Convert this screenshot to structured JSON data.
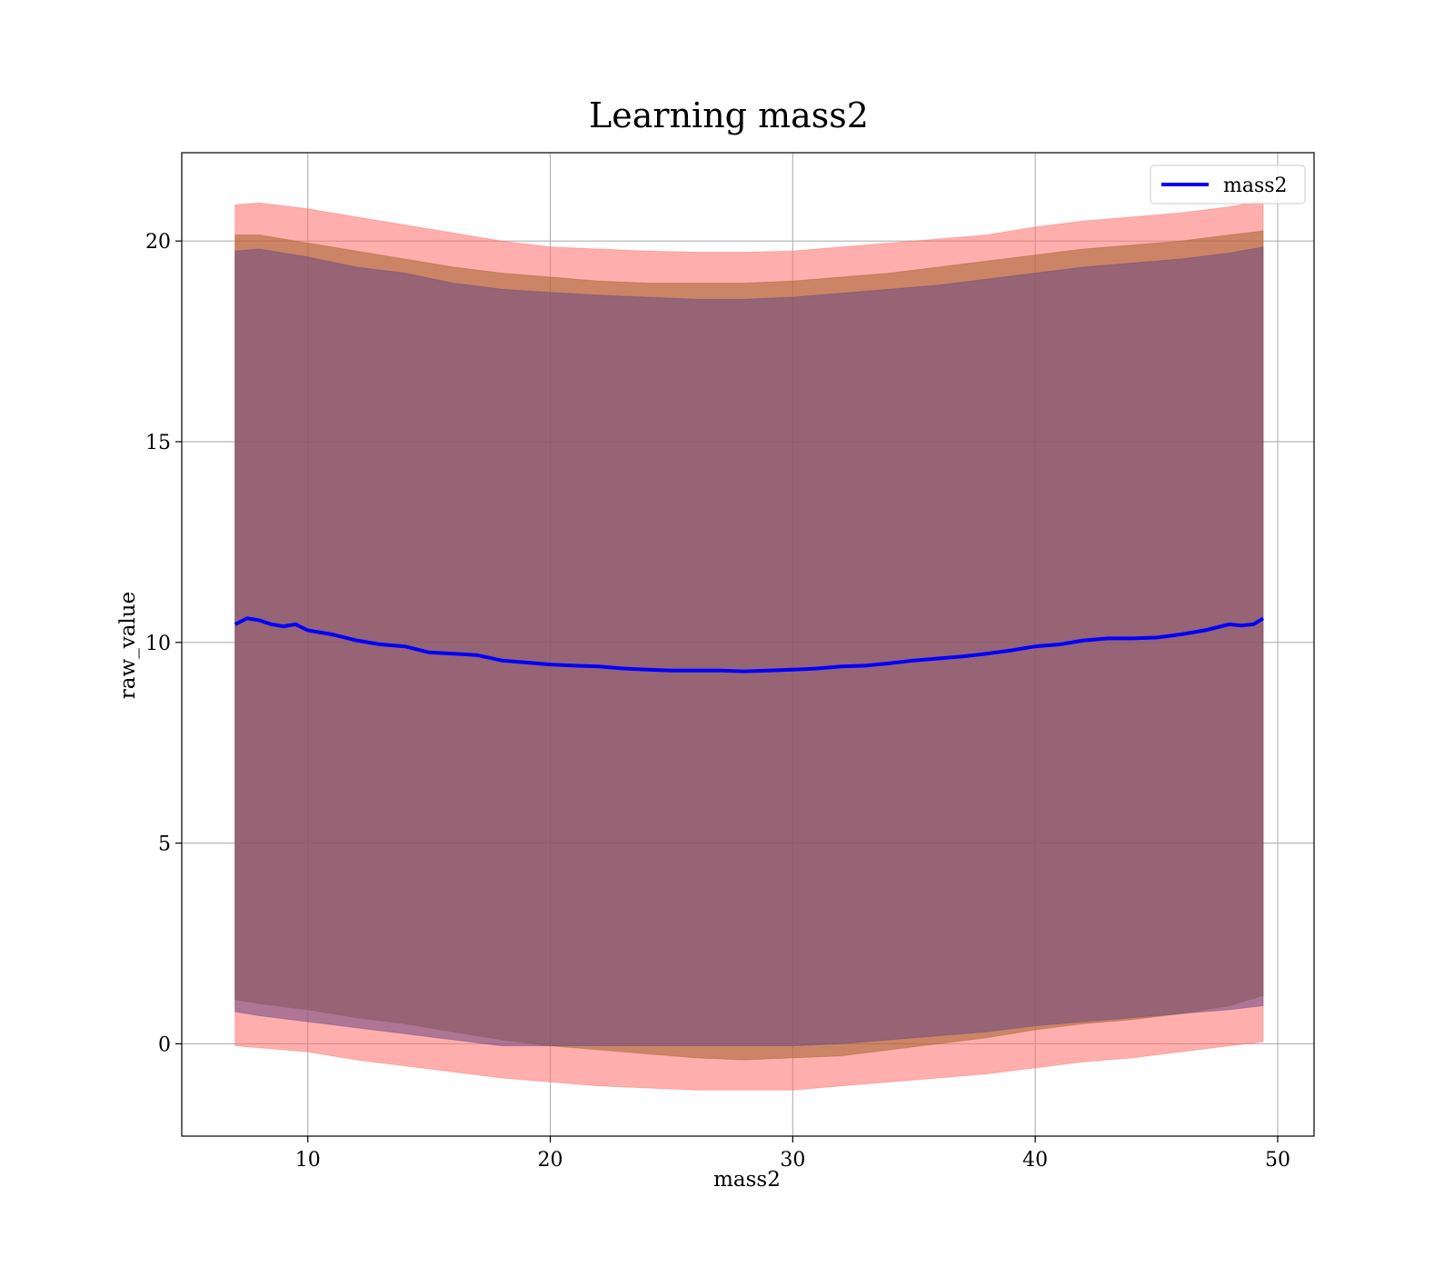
{
  "chart_data": {
    "type": "line",
    "title": "Learning mass2",
    "xlabel": "mass2",
    "ylabel": "raw_value",
    "xlim": [
      4.8,
      51.5
    ],
    "ylim": [
      -2.3,
      22.2
    ],
    "grid": true,
    "legend_placement": "top-right",
    "xticks": [
      10,
      20,
      30,
      40,
      50
    ],
    "yticks": [
      0,
      5,
      10,
      15,
      20
    ],
    "series": [
      {
        "name": "mass2",
        "color": "#0000ff",
        "x": [
          7.0,
          7.5,
          8.0,
          8.5,
          9.0,
          9.5,
          10.0,
          11.0,
          12.0,
          13.0,
          14.0,
          15.0,
          16.0,
          17.0,
          18.0,
          19.0,
          20.0,
          21.0,
          22.0,
          23.0,
          24.0,
          25.0,
          26.0,
          27.0,
          28.0,
          29.0,
          30.0,
          31.0,
          32.0,
          33.0,
          34.0,
          35.0,
          36.0,
          37.0,
          38.0,
          39.0,
          40.0,
          41.0,
          42.0,
          43.0,
          44.0,
          45.0,
          46.0,
          47.0,
          48.0,
          48.5,
          49.0,
          49.4
        ],
        "y": [
          10.45,
          10.6,
          10.55,
          10.45,
          10.4,
          10.45,
          10.3,
          10.2,
          10.05,
          9.95,
          9.9,
          9.75,
          9.72,
          9.68,
          9.55,
          9.5,
          9.45,
          9.42,
          9.4,
          9.35,
          9.32,
          9.3,
          9.3,
          9.3,
          9.28,
          9.3,
          9.32,
          9.35,
          9.4,
          9.42,
          9.48,
          9.55,
          9.6,
          9.65,
          9.72,
          9.8,
          9.9,
          9.95,
          10.05,
          10.1,
          10.1,
          10.12,
          10.2,
          10.3,
          10.45,
          10.42,
          10.45,
          10.6
        ]
      }
    ],
    "bands": [
      {
        "color": "#ff6b6b",
        "opacity": 0.55,
        "x": [
          7.0,
          8.0,
          10.0,
          12.0,
          14.0,
          16.0,
          18.0,
          20.0,
          22.0,
          24.0,
          26.0,
          28.0,
          30.0,
          32.0,
          34.0,
          36.0,
          38.0,
          40.0,
          42.0,
          44.0,
          46.0,
          48.0,
          49.4
        ],
        "upper": [
          20.9,
          20.95,
          20.8,
          20.6,
          20.4,
          20.2,
          20.0,
          19.85,
          19.8,
          19.75,
          19.72,
          19.72,
          19.75,
          19.85,
          19.95,
          20.05,
          20.15,
          20.35,
          20.5,
          20.6,
          20.7,
          20.85,
          21.0
        ],
        "lower": [
          -0.05,
          -0.1,
          -0.2,
          -0.4,
          -0.55,
          -0.7,
          -0.85,
          -0.95,
          -1.05,
          -1.1,
          -1.15,
          -1.15,
          -1.15,
          -1.05,
          -0.95,
          -0.85,
          -0.75,
          -0.6,
          -0.45,
          -0.35,
          -0.2,
          -0.05,
          0.05
        ]
      },
      {
        "color": "#a0652b",
        "opacity": 0.55,
        "x": [
          7.0,
          8.0,
          10.0,
          12.0,
          14.0,
          16.0,
          18.0,
          20.0,
          22.0,
          24.0,
          26.0,
          28.0,
          30.0,
          32.0,
          34.0,
          36.0,
          38.0,
          40.0,
          42.0,
          44.0,
          46.0,
          48.0,
          49.4
        ],
        "upper": [
          20.15,
          20.15,
          19.95,
          19.75,
          19.55,
          19.35,
          19.2,
          19.1,
          19.0,
          18.95,
          18.95,
          18.95,
          19.0,
          19.1,
          19.2,
          19.35,
          19.5,
          19.65,
          19.8,
          19.9,
          20.0,
          20.15,
          20.25
        ],
        "lower": [
          1.1,
          1.0,
          0.85,
          0.65,
          0.5,
          0.3,
          0.1,
          -0.05,
          -0.15,
          -0.25,
          -0.35,
          -0.4,
          -0.35,
          -0.3,
          -0.15,
          0.0,
          0.15,
          0.35,
          0.5,
          0.6,
          0.75,
          0.95,
          1.2
        ]
      },
      {
        "color": "#6b4880",
        "opacity": 0.55,
        "x": [
          7.0,
          8.0,
          10.0,
          12.0,
          14.0,
          16.0,
          18.0,
          20.0,
          22.0,
          24.0,
          26.0,
          28.0,
          30.0,
          32.0,
          34.0,
          36.0,
          38.0,
          40.0,
          42.0,
          44.0,
          46.0,
          48.0,
          49.4
        ],
        "upper": [
          19.75,
          19.8,
          19.6,
          19.35,
          19.2,
          18.95,
          18.8,
          18.72,
          18.65,
          18.6,
          18.55,
          18.55,
          18.6,
          18.7,
          18.8,
          18.9,
          19.05,
          19.2,
          19.35,
          19.45,
          19.55,
          19.7,
          19.85
        ],
        "lower": [
          0.8,
          0.7,
          0.55,
          0.4,
          0.25,
          0.1,
          -0.05,
          -0.05,
          -0.05,
          -0.05,
          -0.05,
          -0.05,
          -0.05,
          0.0,
          0.1,
          0.2,
          0.3,
          0.45,
          0.55,
          0.65,
          0.75,
          0.85,
          0.95
        ]
      }
    ]
  }
}
